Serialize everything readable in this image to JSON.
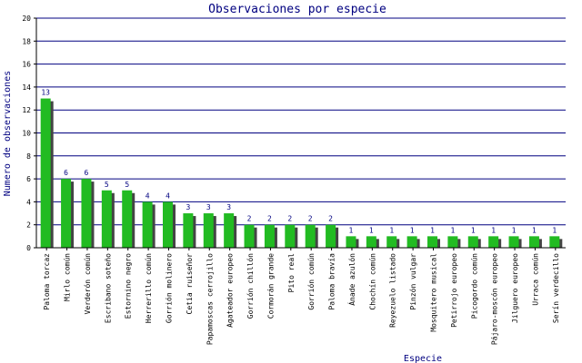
{
  "chart_data": {
    "type": "bar",
    "title": "Observaciones por especie",
    "xlabel": "Especie",
    "ylabel": "Numero de observaciones",
    "ylim": [
      0,
      20
    ],
    "yticks": [
      0,
      2,
      4,
      6,
      8,
      10,
      12,
      14,
      16,
      18,
      20
    ],
    "grid": true,
    "legend": "none",
    "colors": {
      "bar": "#22bb22",
      "shadow": "#444444",
      "grid": "#000080",
      "axis": "#000000",
      "text": "#000080"
    },
    "categories": [
      "Paloma torcaz",
      "Mirlo común",
      "Verderón común",
      "Escribano soteño",
      "Estornino negro",
      "Herrerillo común",
      "Gorrión molinero",
      "Cetia ruiseñor",
      "Papamoscas cerrojillo",
      "Agateador europeo",
      "Gorrión chillón",
      "Cormorán grande",
      "Pito real",
      "Gorrión común",
      "Paloma bravía",
      "Ánade azulón",
      "Chochín común",
      "Reyezuelo listado",
      "Pinzón vulgar",
      "Mosquitero musical",
      "Petirrojo europeo",
      "Picogordo común",
      "Pájaro-moscón europeo",
      "Jilguero europeo",
      "Urraca común",
      "Serín verdecillo"
    ],
    "values": [
      13,
      6,
      6,
      5,
      5,
      4,
      4,
      3,
      3,
      3,
      2,
      2,
      2,
      2,
      2,
      1,
      1,
      1,
      1,
      1,
      1,
      1,
      1,
      1,
      1,
      1
    ]
  }
}
